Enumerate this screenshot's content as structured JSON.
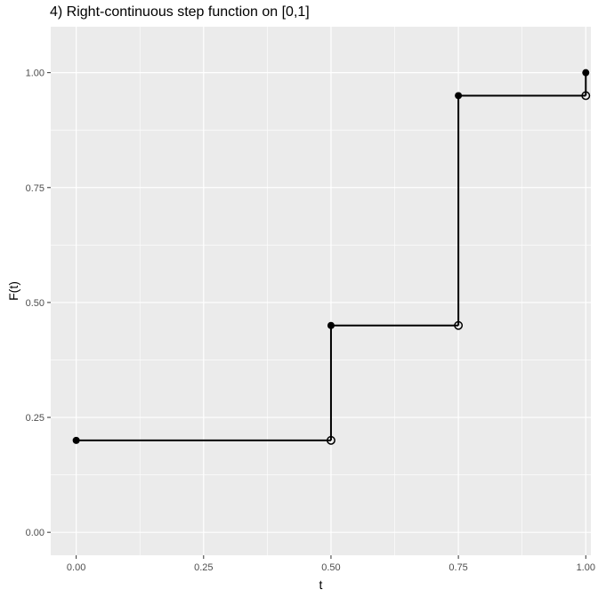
{
  "chart_data": {
    "type": "step",
    "title": "4) Right-continuous step function on [0,1]",
    "xlabel": "t",
    "ylabel": "F(t)",
    "xlim": [
      -0.05,
      1.01
    ],
    "ylim": [
      -0.05,
      1.1
    ],
    "x_ticks": [
      0,
      0.25,
      0.5,
      0.75,
      1.0
    ],
    "x_tick_labels": [
      "0.00",
      "0.25",
      "0.50",
      "0.75",
      "1.00"
    ],
    "y_ticks": [
      0,
      0.25,
      0.5,
      0.75,
      1.0
    ],
    "y_tick_labels": [
      "0.00",
      "0.25",
      "0.50",
      "0.75",
      "1.00"
    ],
    "grid": true,
    "panel_color": "#ebebeb",
    "grid_color": "#ffffff",
    "line_color": "#000000",
    "steps": [
      {
        "x0": 0.0,
        "x1": 0.5,
        "y": 0.2
      },
      {
        "x0": 0.5,
        "x1": 0.75,
        "y": 0.45
      },
      {
        "x0": 0.75,
        "x1": 1.0,
        "y": 0.95
      }
    ],
    "jumps": [
      {
        "x": 0.5,
        "y0": 0.2,
        "y1": 0.45
      },
      {
        "x": 0.75,
        "y0": 0.45,
        "y1": 0.95
      },
      {
        "x": 1.0,
        "y0": 0.95,
        "y1": 1.0
      }
    ],
    "closed_points": [
      {
        "x": 0.0,
        "y": 0.2
      },
      {
        "x": 0.5,
        "y": 0.45
      },
      {
        "x": 0.75,
        "y": 0.95
      },
      {
        "x": 1.0,
        "y": 1.0
      }
    ],
    "open_points": [
      {
        "x": 0.5,
        "y": 0.2
      },
      {
        "x": 0.75,
        "y": 0.45
      },
      {
        "x": 1.0,
        "y": 0.95
      }
    ]
  }
}
